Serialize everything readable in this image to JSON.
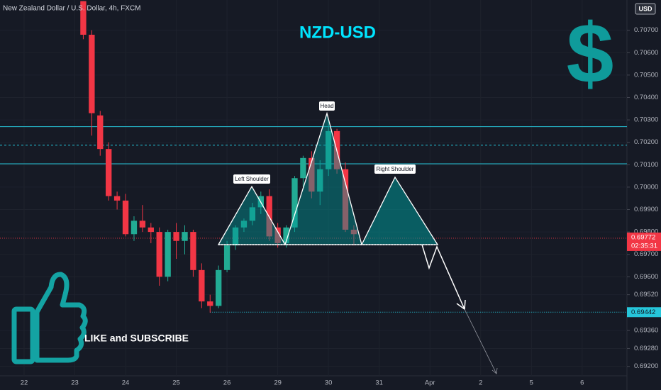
{
  "chart_data": {
    "type": "candlestick",
    "header": "New Zealand Dollar / U.S. Dollar, 4h, FXCM",
    "title": "NZD-USD",
    "symbol": "$",
    "annotation": "LIKE and SUBSCRIBE",
    "currency": "USD",
    "pattern_labels": [
      "Left Shoulder",
      "Head",
      "Right Shoulder"
    ],
    "last_price": 0.69772,
    "countdown": "02:35:31",
    "target_level": 0.69442,
    "lines": [
      0.7027,
      0.70187,
      0.70104
    ],
    "up_color": "#22ab94",
    "down_color": "#f23645",
    "x": [
      7,
      8,
      9,
      10,
      11,
      12,
      13,
      14,
      15,
      16,
      17,
      18,
      19,
      20,
      21,
      22,
      23,
      24,
      25,
      26,
      27,
      28,
      29,
      30,
      31,
      32,
      33,
      34,
      35,
      36,
      37,
      38,
      39
    ],
    "open": [
      0.7083,
      0.7068,
      0.7032,
      0.7017,
      0.6996,
      0.6994,
      0.6979,
      0.6985,
      0.6982,
      0.698,
      0.696,
      0.698,
      0.6976,
      0.698,
      0.6963,
      0.6949,
      0.6947,
      0.6963,
      0.6974,
      0.6982,
      0.6985,
      0.6991,
      0.6996,
      0.6982,
      0.6975,
      0.6982,
      0.7004,
      0.7013,
      0.6998,
      0.7008,
      0.7025,
      0.7008,
      0.6981
    ],
    "high": [
      0.7083,
      0.707,
      0.7034,
      0.702,
      0.6998,
      0.6997,
      0.6987,
      0.6992,
      0.6984,
      0.6982,
      0.6981,
      0.6984,
      0.6983,
      0.6981,
      0.6966,
      0.6952,
      0.6965,
      0.6976,
      0.6983,
      0.6986,
      0.6993,
      0.6998,
      0.6999,
      0.6984,
      0.6983,
      0.7005,
      0.7014,
      0.7016,
      0.7012,
      0.703,
      0.7026,
      0.7011,
      0.6983
    ],
    "low": [
      0.7066,
      0.7023,
      0.7014,
      0.6994,
      0.699,
      0.6978,
      0.6976,
      0.698,
      0.6975,
      0.6956,
      0.6958,
      0.6968,
      0.697,
      0.696,
      0.6946,
      0.6944,
      0.6946,
      0.6962,
      0.6972,
      0.698,
      0.6983,
      0.6988,
      0.6976,
      0.6973,
      0.6973,
      0.698,
      0.7,
      0.6995,
      0.6992,
      0.7005,
      0.7006,
      0.698,
      0.6974
    ],
    "close": [
      0.7068,
      0.7033,
      0.7017,
      0.6996,
      0.6994,
      0.6979,
      0.6985,
      0.6982,
      0.698,
      0.696,
      0.698,
      0.6976,
      0.698,
      0.6963,
      0.6949,
      0.6947,
      0.6963,
      0.6974,
      0.6982,
      0.6985,
      0.6991,
      0.6996,
      0.6978,
      0.6975,
      0.6982,
      0.7004,
      0.7013,
      0.6998,
      0.7008,
      0.7025,
      0.7008,
      0.6981,
      0.6979
    ],
    "xlim": [
      -2.85,
      71.3
    ],
    "xticks": [
      {
        "value": 0,
        "label": "22"
      },
      {
        "value": 6,
        "label": "23"
      },
      {
        "value": 12,
        "label": "24"
      },
      {
        "value": 18,
        "label": "25"
      },
      {
        "value": 24,
        "label": "26"
      },
      {
        "value": 30,
        "label": "29"
      },
      {
        "value": 36,
        "label": "30"
      },
      {
        "value": 42,
        "label": "31"
      },
      {
        "value": 48,
        "label": "Apr"
      },
      {
        "value": 54,
        "label": "2"
      },
      {
        "value": 60,
        "label": "5"
      },
      {
        "value": 66,
        "label": "6"
      }
    ],
    "ylim": [
      0.69158,
      0.70835
    ],
    "yticks": [
      {
        "value": 0.707,
        "label": "0.70700"
      },
      {
        "value": 0.706,
        "label": "0.70600"
      },
      {
        "value": 0.705,
        "label": "0.70500"
      },
      {
        "value": 0.704,
        "label": "0.70400"
      },
      {
        "value": 0.703,
        "label": "0.70300"
      },
      {
        "value": 0.702,
        "label": "0.70200"
      },
      {
        "value": 0.701,
        "label": "0.70100"
      },
      {
        "value": 0.7,
        "label": "0.70000"
      },
      {
        "value": 0.699,
        "label": "0.69900"
      },
      {
        "value": 0.698,
        "label": "0.69800"
      },
      {
        "value": 0.697,
        "label": "0.69700"
      },
      {
        "value": 0.696,
        "label": "0.69600"
      },
      {
        "value": 0.6952,
        "label": "0.69520"
      },
      {
        "value": 0.6936,
        "label": "0.69360"
      },
      {
        "value": 0.6928,
        "label": "0.69280"
      },
      {
        "value": 0.692,
        "label": "0.69200"
      }
    ]
  }
}
